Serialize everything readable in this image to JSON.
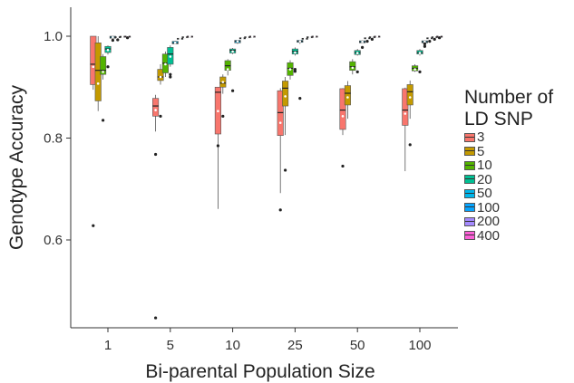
{
  "chart_data": {
    "type": "boxplot",
    "xlabel": "Bi-parental Population Size",
    "ylabel": "Genotype Accuracy",
    "categories": [
      "1",
      "5",
      "10",
      "25",
      "50",
      "100"
    ],
    "yticks": [
      0.6,
      0.8,
      1.0
    ],
    "ytick_labels": [
      "0.6",
      "0.8",
      "1.0"
    ],
    "ylim": [
      0.44,
      1.05
    ],
    "legend_title": "Number of\nLD SNP",
    "legend_position": "right",
    "series": [
      {
        "name": "3",
        "color": "#F8766D",
        "boxes": [
          {
            "lo": 0.895,
            "q1": 0.905,
            "med": 0.945,
            "q3": 1.0,
            "hi": 1.0,
            "mean": 0.94,
            "out": [
              0.628
            ]
          },
          {
            "lo": 0.813,
            "q1": 0.843,
            "med": 0.863,
            "q3": 0.878,
            "hi": 0.885,
            "mean": 0.855,
            "out": [
              0.768,
              0.447
            ]
          },
          {
            "lo": 0.661,
            "q1": 0.808,
            "med": 0.89,
            "q3": 0.9,
            "hi": 0.9,
            "mean": 0.853,
            "out": [
              0.785
            ]
          },
          {
            "lo": 0.692,
            "q1": 0.805,
            "med": 0.85,
            "q3": 0.893,
            "hi": 0.898,
            "mean": 0.83,
            "out": [
              0.659
            ]
          },
          {
            "lo": 0.806,
            "q1": 0.817,
            "med": 0.855,
            "q3": 0.897,
            "hi": 0.898,
            "mean": 0.843,
            "out": [
              0.745
            ]
          },
          {
            "lo": 0.735,
            "q1": 0.825,
            "med": 0.855,
            "q3": 0.897,
            "hi": 0.899,
            "mean": 0.848,
            "out": []
          }
        ]
      },
      {
        "name": "5",
        "color": "#C49A00",
        "boxes": [
          {
            "lo": 0.853,
            "q1": 0.873,
            "med": 0.933,
            "q3": 0.987,
            "hi": 1.0,
            "mean": 0.907,
            "out": []
          },
          {
            "lo": 0.905,
            "q1": 0.913,
            "med": 0.92,
            "q3": 0.935,
            "hi": 0.945,
            "mean": 0.92,
            "out": [
              0.843
            ]
          },
          {
            "lo": 0.887,
            "q1": 0.9,
            "med": 0.908,
            "q3": 0.92,
            "hi": 0.925,
            "mean": 0.91,
            "out": [
              0.843
            ]
          },
          {
            "lo": 0.806,
            "q1": 0.863,
            "med": 0.898,
            "q3": 0.912,
            "hi": 0.92,
            "mean": 0.882,
            "out": [
              0.737
            ]
          },
          {
            "lo": 0.838,
            "q1": 0.865,
            "med": 0.888,
            "q3": 0.903,
            "hi": 0.912,
            "mean": 0.88,
            "out": []
          },
          {
            "lo": 0.838,
            "q1": 0.865,
            "med": 0.891,
            "q3": 0.905,
            "hi": 0.913,
            "mean": 0.88,
            "out": [
              0.787
            ]
          }
        ]
      },
      {
        "name": "10",
        "color": "#53B400",
        "boxes": [
          {
            "lo": 0.915,
            "q1": 0.925,
            "med": 0.933,
            "q3": 0.96,
            "hi": 0.965,
            "mean": 0.93,
            "out": [
              0.835
            ]
          },
          {
            "lo": 0.92,
            "q1": 0.928,
            "med": 0.947,
            "q3": 0.965,
            "hi": 0.97,
            "mean": 0.945,
            "out": []
          },
          {
            "lo": 0.923,
            "q1": 0.933,
            "med": 0.942,
            "q3": 0.952,
            "hi": 0.955,
            "mean": 0.935,
            "out": []
          },
          {
            "lo": 0.915,
            "q1": 0.923,
            "med": 0.937,
            "q3": 0.948,
            "hi": 0.953,
            "mean": 0.935,
            "out": []
          },
          {
            "lo": 0.925,
            "q1": 0.933,
            "med": 0.94,
            "q3": 0.95,
            "hi": 0.955,
            "mean": 0.938,
            "out": []
          },
          {
            "lo": 0.93,
            "q1": 0.932,
            "med": 0.937,
            "q3": 0.942,
            "hi": 0.945,
            "mean": 0.935,
            "out": []
          }
        ]
      },
      {
        "name": "20",
        "color": "#00C094",
        "boxes": [
          {
            "lo": 0.964,
            "q1": 0.968,
            "med": 0.975,
            "q3": 0.98,
            "hi": 0.982,
            "mean": 0.973,
            "out": [
              0.94
            ]
          },
          {
            "lo": 0.94,
            "q1": 0.945,
            "med": 0.965,
            "q3": 0.978,
            "hi": 0.982,
            "mean": 0.96,
            "out": [
              0.925,
              0.92
            ]
          },
          {
            "lo": 0.965,
            "q1": 0.967,
            "med": 0.972,
            "q3": 0.975,
            "hi": 0.977,
            "mean": 0.97,
            "out": [
              0.893
            ]
          },
          {
            "lo": 0.962,
            "q1": 0.965,
            "med": 0.97,
            "q3": 0.975,
            "hi": 0.978,
            "mean": 0.968,
            "out": [
              0.935,
              0.931
            ]
          },
          {
            "lo": 0.962,
            "q1": 0.964,
            "med": 0.968,
            "q3": 0.972,
            "hi": 0.975,
            "mean": 0.967,
            "out": [
              0.93
            ]
          },
          {
            "lo": 0.962,
            "q1": 0.965,
            "med": 0.968,
            "q3": 0.972,
            "hi": 0.975,
            "mean": 0.967,
            "out": [
              0.93
            ]
          }
        ]
      },
      {
        "name": "50",
        "color": "#00B6EB",
        "boxes": [
          {
            "lo": 0.994,
            "q1": 0.996,
            "med": 0.998,
            "q3": 1.0,
            "hi": 1.0,
            "mean": 0.998,
            "out": [
              0.992
            ]
          },
          {
            "lo": 0.984,
            "q1": 0.985,
            "med": 0.987,
            "q3": 0.99,
            "hi": 0.991,
            "mean": 0.987,
            "out": []
          },
          {
            "lo": 0.985,
            "q1": 0.987,
            "med": 0.99,
            "q3": 0.992,
            "hi": 0.993,
            "mean": 0.99,
            "out": []
          },
          {
            "lo": 0.985,
            "q1": 0.988,
            "med": 0.99,
            "q3": 0.992,
            "hi": 0.993,
            "mean": 0.99,
            "out": [
              0.878
            ]
          },
          {
            "lo": 0.986,
            "q1": 0.987,
            "med": 0.989,
            "q3": 0.991,
            "hi": 0.992,
            "mean": 0.989,
            "out": [
              0.978
            ]
          },
          {
            "lo": 0.986,
            "q1": 0.987,
            "med": 0.989,
            "q3": 0.991,
            "hi": 0.992,
            "mean": 0.989,
            "out": [
              0.985,
              0.98
            ]
          }
        ]
      },
      {
        "name": "100",
        "color": "#06A4FF",
        "boxes": [
          {
            "lo": 0.996,
            "q1": 0.997,
            "med": 0.998,
            "q3": 0.999,
            "hi": 1.0,
            "mean": 0.998,
            "out": [
              0.993
            ]
          },
          {
            "lo": 0.993,
            "q1": 0.994,
            "med": 0.995,
            "q3": 0.996,
            "hi": 0.997,
            "mean": 0.995,
            "out": []
          },
          {
            "lo": 0.994,
            "q1": 0.995,
            "med": 0.996,
            "q3": 0.997,
            "hi": 0.998,
            "mean": 0.996,
            "out": []
          },
          {
            "lo": 0.993,
            "q1": 0.994,
            "med": 0.995,
            "q3": 0.996,
            "hi": 0.997,
            "mean": 0.995,
            "out": []
          },
          {
            "lo": 0.994,
            "q1": 0.995,
            "med": 0.996,
            "q3": 0.997,
            "hi": 0.998,
            "mean": 0.996,
            "out": [
              0.99
            ]
          },
          {
            "lo": 0.994,
            "q1": 0.995,
            "med": 0.996,
            "q3": 0.997,
            "hi": 0.998,
            "mean": 0.996,
            "out": [
              0.99
            ]
          }
        ]
      },
      {
        "name": "200",
        "color": "#A58AFF",
        "boxes": [
          {
            "lo": 0.997,
            "q1": 0.998,
            "med": 0.999,
            "q3": 1.0,
            "hi": 1.0,
            "mean": 0.999,
            "out": []
          },
          {
            "lo": 0.996,
            "q1": 0.997,
            "med": 0.998,
            "q3": 0.999,
            "hi": 1.0,
            "mean": 0.998,
            "out": []
          },
          {
            "lo": 0.996,
            "q1": 0.997,
            "med": 0.998,
            "q3": 0.999,
            "hi": 1.0,
            "mean": 0.998,
            "out": []
          },
          {
            "lo": 0.996,
            "q1": 0.997,
            "med": 0.998,
            "q3": 0.999,
            "hi": 1.0,
            "mean": 0.998,
            "out": []
          },
          {
            "lo": 0.996,
            "q1": 0.997,
            "med": 0.998,
            "q3": 0.999,
            "hi": 1.0,
            "mean": 0.998,
            "out": [
              0.994
            ]
          },
          {
            "lo": 0.996,
            "q1": 0.997,
            "med": 0.998,
            "q3": 0.999,
            "hi": 1.0,
            "mean": 0.998,
            "out": [
              0.994
            ]
          }
        ]
      },
      {
        "name": "400",
        "color": "#FB61D7",
        "boxes": [
          {
            "lo": 0.998,
            "q1": 0.999,
            "med": 0.9995,
            "q3": 1.0,
            "hi": 1.0,
            "mean": 0.9995,
            "out": [
              0.997
            ]
          },
          {
            "lo": 0.998,
            "q1": 0.999,
            "med": 0.9995,
            "q3": 1.0,
            "hi": 1.0,
            "mean": 0.9995,
            "out": []
          },
          {
            "lo": 0.998,
            "q1": 0.999,
            "med": 0.9995,
            "q3": 1.0,
            "hi": 1.0,
            "mean": 0.9995,
            "out": []
          },
          {
            "lo": 0.998,
            "q1": 0.999,
            "med": 0.9995,
            "q3": 1.0,
            "hi": 1.0,
            "mean": 0.9995,
            "out": []
          },
          {
            "lo": 0.998,
            "q1": 0.999,
            "med": 0.9995,
            "q3": 1.0,
            "hi": 1.0,
            "mean": 0.9995,
            "out": []
          },
          {
            "lo": 0.998,
            "q1": 0.999,
            "med": 0.9995,
            "q3": 1.0,
            "hi": 1.0,
            "mean": 0.9995,
            "out": [
              0.997
            ]
          }
        ]
      }
    ]
  }
}
